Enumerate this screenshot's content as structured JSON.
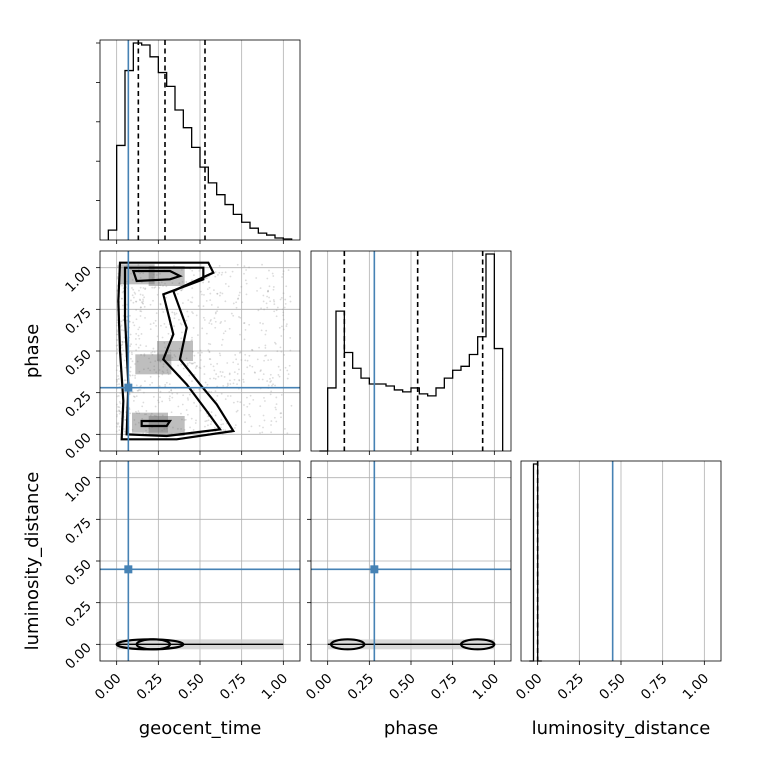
{
  "chart_data": {
    "type": "corner",
    "title": "",
    "parameters": [
      "geocent_time",
      "phase",
      "luminosity_distance"
    ],
    "axis_labels": {
      "geocent_time": "geocent_time",
      "phase": "phase",
      "luminosity_distance": "luminosity_distance"
    },
    "ticks": [
      0.0,
      0.25,
      0.5,
      0.75,
      1.0
    ],
    "tick_labels": [
      "0.00",
      "0.25",
      "0.50",
      "0.75",
      "1.00"
    ],
    "ranges": {
      "geocent_time": [
        -0.1,
        1.1
      ],
      "phase": [
        -0.1,
        1.1
      ],
      "luminosity_distance": [
        -0.1,
        1.1
      ]
    },
    "truths": {
      "geocent_time": 0.07,
      "phase": 0.28,
      "luminosity_distance": 0.45
    },
    "truth_color": "#4682b4",
    "quantiles": {
      "geocent_time": [
        0.13,
        0.29,
        0.53
      ],
      "phase": [
        0.1,
        0.54,
        0.93
      ],
      "luminosity_distance": [
        0.0
      ]
    },
    "histograms": {
      "geocent_time": {
        "bin_edges": [
          -0.05,
          0.0,
          0.05,
          0.1,
          0.15,
          0.2,
          0.25,
          0.3,
          0.35,
          0.4,
          0.45,
          0.5,
          0.55,
          0.6,
          0.65,
          0.7,
          0.75,
          0.8,
          0.85,
          0.9,
          0.95,
          1.0,
          1.05
        ],
        "counts": [
          0.05,
          0.48,
          0.86,
          1.0,
          0.99,
          0.93,
          0.85,
          0.78,
          0.66,
          0.57,
          0.47,
          0.37,
          0.29,
          0.23,
          0.18,
          0.13,
          0.09,
          0.06,
          0.035,
          0.025,
          0.01,
          0.005
        ]
      },
      "phase": {
        "bin_edges": [
          -0.05,
          0.0,
          0.05,
          0.1,
          0.15,
          0.2,
          0.25,
          0.3,
          0.35,
          0.4,
          0.45,
          0.5,
          0.55,
          0.6,
          0.65,
          0.7,
          0.75,
          0.8,
          0.85,
          0.9,
          0.95,
          1.0,
          1.05
        ],
        "counts": [
          0.0,
          0.32,
          0.71,
          0.5,
          0.42,
          0.37,
          0.34,
          0.34,
          0.33,
          0.31,
          0.3,
          0.32,
          0.29,
          0.28,
          0.32,
          0.37,
          0.41,
          0.43,
          0.49,
          0.58,
          1.0,
          0.52
        ]
      },
      "luminosity_distance": {
        "bin_edges": [
          -0.05,
          -0.025,
          0.0,
          0.025
        ],
        "counts": [
          0.0,
          1.0,
          0.0
        ]
      }
    },
    "scatter_2d": {
      "phase_vs_geocent_time": {
        "x_range": [
          0.0,
          1.05
        ],
        "y_range": [
          0.0,
          1.02
        ],
        "density_peaks": [
          [
            0.12,
            0.96
          ],
          [
            0.3,
            0.95
          ],
          [
            0.2,
            0.07
          ],
          [
            0.3,
            0.05
          ],
          [
            0.22,
            0.42
          ],
          [
            0.35,
            0.5
          ]
        ]
      },
      "luminosity_distance_vs_geocent_time": {
        "x_range": [
          0.0,
          1.0
        ],
        "y_value": 0.0
      },
      "luminosity_distance_vs_phase": {
        "x_range": [
          0.0,
          1.0
        ],
        "y_value": 0.0
      }
    },
    "grid": true,
    "legend": "none"
  }
}
